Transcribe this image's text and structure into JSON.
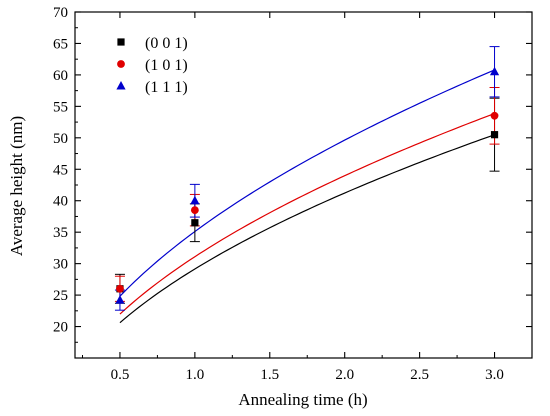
{
  "chart_data": {
    "type": "scatter",
    "xlabel": "Annealing time (h)",
    "ylabel": "Average height (nm)",
    "xlim": [
      0.2,
      3.25
    ],
    "ylim": [
      15,
      70
    ],
    "xticks": [
      0.5,
      1.0,
      1.5,
      2.0,
      2.5,
      3.0
    ],
    "xtick_labels": [
      "0.5",
      "1.0",
      "1.5",
      "2.0",
      "2.5",
      "3.0"
    ],
    "yticks": [
      20,
      25,
      30,
      35,
      40,
      45,
      50,
      55,
      60,
      65,
      70
    ],
    "ytick_labels": [
      "20",
      "25",
      "30",
      "35",
      "40",
      "45",
      "50",
      "55",
      "60",
      "65",
      "70"
    ],
    "grid": false,
    "legend_position": "top-left",
    "series": [
      {
        "name": "(0 0 1)",
        "marker": "square",
        "color": "#000000",
        "x": [
          0.5,
          1.0,
          3.0
        ],
        "y": [
          26.0,
          36.5,
          50.5
        ],
        "err": [
          2.3,
          3.0,
          5.8
        ],
        "fit_coeff": 29.15
      },
      {
        "name": "(1 0 1)",
        "marker": "circle",
        "color": "#e00000",
        "x": [
          0.5,
          1.0,
          3.0
        ],
        "y": [
          26.0,
          38.5,
          53.5
        ],
        "err": [
          2.0,
          2.5,
          4.5
        ],
        "fit_coeff": 31.1
      },
      {
        "name": "(1 1 1)",
        "marker": "triangle",
        "color": "#0000cc",
        "x": [
          0.5,
          1.0,
          3.0
        ],
        "y": [
          24.2,
          40.0,
          60.5
        ],
        "err": [
          1.6,
          2.6,
          4.0
        ],
        "fit_coeff": 35.1
      }
    ]
  }
}
